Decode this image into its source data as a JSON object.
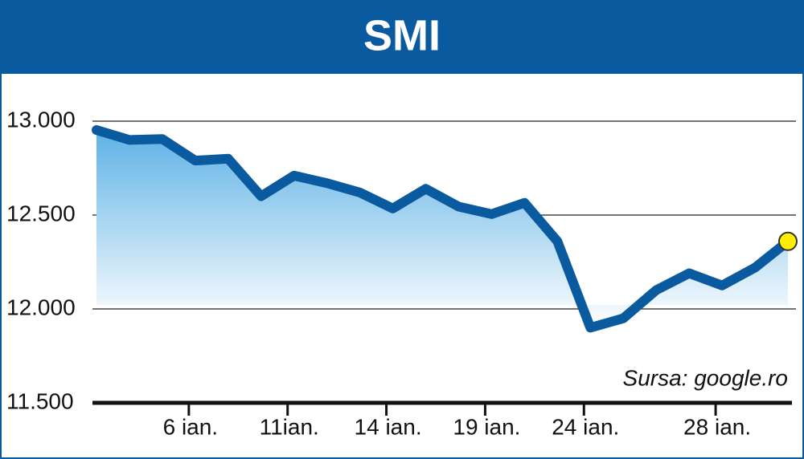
{
  "chart_data": {
    "type": "line",
    "title": "SMI",
    "categories": [
      null,
      null,
      null,
      "6 ian.",
      null,
      null,
      "11ian.",
      null,
      null,
      "14 ian.",
      null,
      null,
      "19 ian.",
      null,
      null,
      "24 ian.",
      null,
      null,
      null,
      "28 ian.",
      null,
      null
    ],
    "series": [
      {
        "color": "#0a5aa0",
        "values": [
          12953,
          12900,
          12905,
          12790,
          12800,
          12600,
          12710,
          12670,
          12620,
          12535,
          12640,
          12545,
          12505,
          12565,
          12360,
          11900,
          11950,
          12100,
          12190,
          12125,
          12220,
          12360
        ]
      }
    ],
    "ylim": [
      11500,
      13000
    ],
    "yticks": [
      {
        "value": 11500,
        "label": "11.500"
      },
      {
        "value": 12000,
        "label": "12.000"
      },
      {
        "value": 12500,
        "label": "12.500"
      },
      {
        "value": 13000,
        "label": "13.000"
      }
    ],
    "grid": true,
    "annotation": "Sursa: google.ro"
  }
}
